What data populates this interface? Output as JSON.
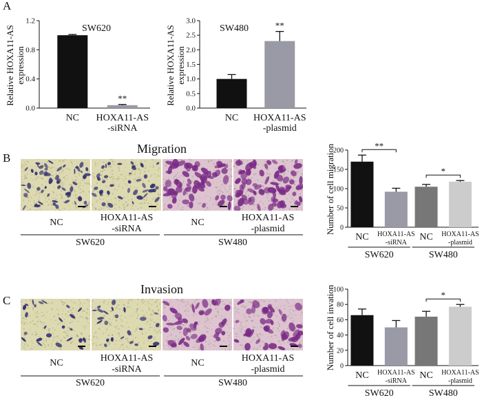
{
  "panel_labels": {
    "a": "A",
    "b": "B",
    "c": "C"
  },
  "section_titles": {
    "migration": "Migration",
    "invasion": "Invasion"
  },
  "images": {
    "cell_lines": [
      "SW620",
      "SW480"
    ],
    "conditions": [
      {
        "line1": "NC",
        "line2": ""
      },
      {
        "line1": "HOXA11-AS",
        "line2": "-siRNA"
      },
      {
        "line1": "NC",
        "line2": ""
      },
      {
        "line1": "HOXA11-AS",
        "line2": "-plasmid"
      }
    ],
    "colors": {
      "sw620_bg": "#ddd9b0",
      "sw620_cell": "#2e2b72",
      "sw480_bg": "#ddc4d0",
      "sw480_cell": "#7a2a86"
    }
  },
  "chart_data": [
    {
      "id": "a1",
      "type": "bar",
      "title": "SW620",
      "ylabel": [
        "Relative HOXA11-AS",
        "expression"
      ],
      "categories": [
        {
          "line1": "NC",
          "line2": ""
        },
        {
          "line1": "HOXA11-AS",
          "line2": "-siRNA"
        }
      ],
      "values": [
        1.0,
        0.04
      ],
      "errors": [
        0.01,
        0.01
      ],
      "colors": [
        "#111111",
        "#9a9aa6"
      ],
      "ylim": [
        0,
        1.2
      ],
      "yticks": [
        "0.0",
        "0.4",
        "0.8",
        "1.2"
      ],
      "ytick_values": [
        0,
        0.4,
        0.8,
        1.2
      ],
      "significance": [
        {
          "bar": 1,
          "label": "**"
        }
      ],
      "groups": []
    },
    {
      "id": "a2",
      "type": "bar",
      "title": "SW480",
      "ylabel": [
        "Relative HOXA11-AS",
        "expression"
      ],
      "categories": [
        {
          "line1": "NC",
          "line2": ""
        },
        {
          "line1": "HOXA11-AS",
          "line2": "-plasmid"
        }
      ],
      "values": [
        1.0,
        2.3
      ],
      "errors": [
        0.15,
        0.33
      ],
      "colors": [
        "#111111",
        "#9a9aa6"
      ],
      "ylim": [
        0,
        3.0
      ],
      "yticks": [
        "0.0",
        "0.5",
        "1.0",
        "1.5",
        "2.0",
        "2.5",
        "3.0"
      ],
      "ytick_values": [
        0,
        0.5,
        1.0,
        1.5,
        2.0,
        2.5,
        3.0
      ],
      "significance": [
        {
          "bar": 1,
          "label": "**"
        }
      ],
      "groups": []
    },
    {
      "id": "b",
      "type": "bar",
      "title": "",
      "ylabel": [
        "Number of cell migration"
      ],
      "categories": [
        {
          "line1": "NC",
          "line2": ""
        },
        {
          "line1": "HOXA11-AS",
          "line2": "-siRNA"
        },
        {
          "line1": "NC",
          "line2": ""
        },
        {
          "line1": "HOXA11-AS",
          "line2": "-plasmid"
        }
      ],
      "values": [
        170,
        92,
        105,
        118
      ],
      "errors": [
        17,
        9,
        6,
        3
      ],
      "colors": [
        "#111111",
        "#9a9aa6",
        "#777777",
        "#cccccc"
      ],
      "ylim": [
        0,
        200
      ],
      "yticks": [
        "0",
        "50",
        "100",
        "150",
        "200"
      ],
      "ytick_values": [
        0,
        50,
        100,
        150,
        200
      ],
      "significance": [
        {
          "from": 0,
          "to": 1,
          "label": "**"
        },
        {
          "from": 2,
          "to": 3,
          "label": "*"
        }
      ],
      "groups": [
        {
          "label": "SW620",
          "from": 0,
          "to": 1
        },
        {
          "label": "SW480",
          "from": 2,
          "to": 3
        }
      ]
    },
    {
      "id": "c",
      "type": "bar",
      "title": "",
      "ylabel": [
        "Number of cell invation"
      ],
      "categories": [
        {
          "line1": "NC",
          "line2": ""
        },
        {
          "line1": "HOXA11-AS",
          "line2": "-siRNA"
        },
        {
          "line1": "NC",
          "line2": ""
        },
        {
          "line1": "HOXA11-AS",
          "line2": "-plasmid"
        }
      ],
      "values": [
        66,
        50,
        64,
        77
      ],
      "errors": [
        8,
        9,
        7,
        3
      ],
      "colors": [
        "#111111",
        "#9a9aa6",
        "#777777",
        "#cccccc"
      ],
      "ylim": [
        0,
        100
      ],
      "yticks": [
        "0",
        "20",
        "40",
        "60",
        "80",
        "100"
      ],
      "ytick_values": [
        0,
        20,
        40,
        60,
        80,
        100
      ],
      "significance": [
        {
          "from": 2,
          "to": 3,
          "label": "*"
        }
      ],
      "groups": [
        {
          "label": "SW620",
          "from": 0,
          "to": 1
        },
        {
          "label": "SW480",
          "from": 2,
          "to": 3
        }
      ]
    }
  ]
}
